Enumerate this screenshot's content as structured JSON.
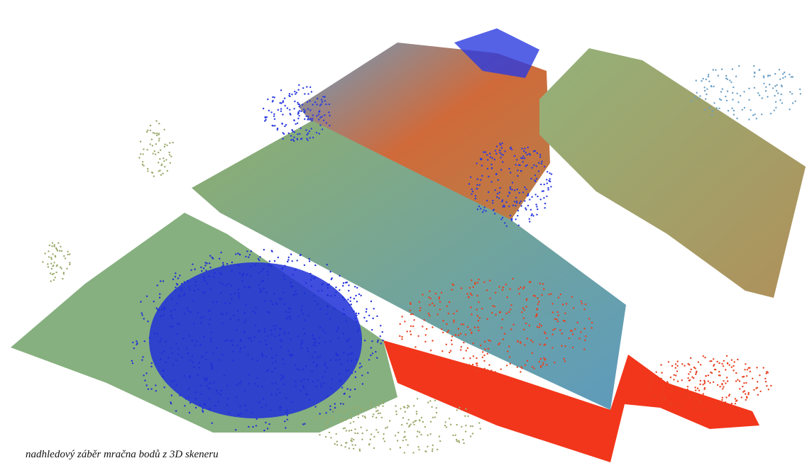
{
  "caption": "nadhledový záběr mračna bodů z 3D skeneru"
}
